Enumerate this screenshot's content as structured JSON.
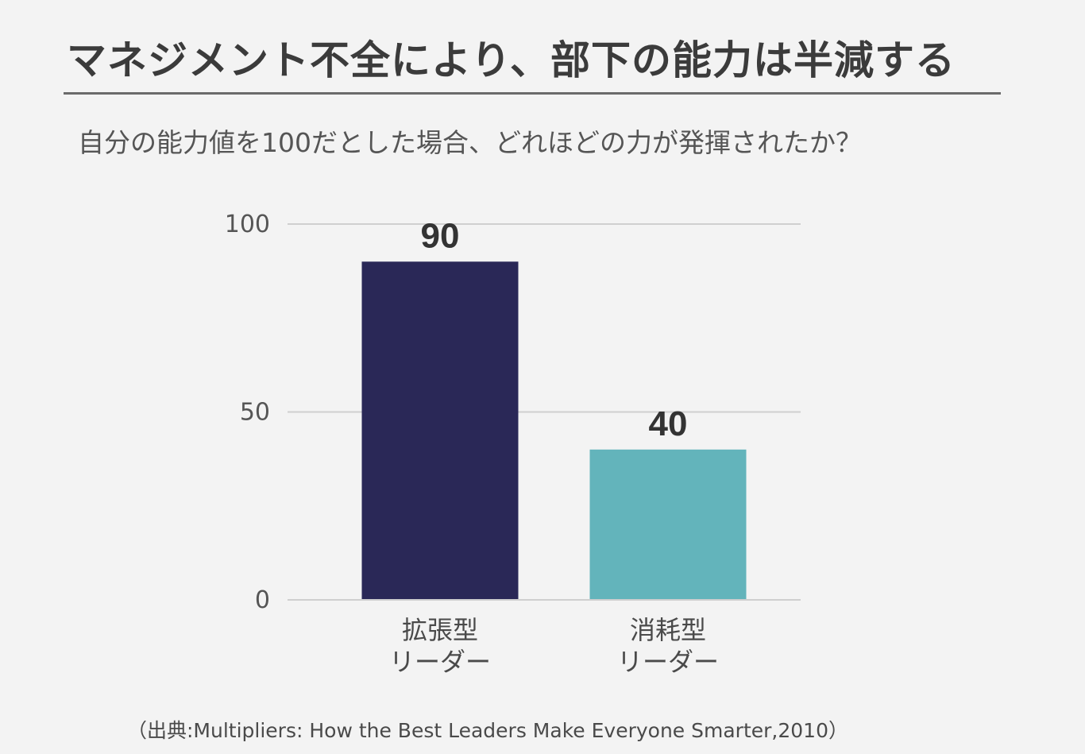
{
  "header": {
    "title": "マネジメント不全により、部下の能力は半減する",
    "subtitle": "自分の能力値を100だとした場合、どれほどの力が発揮されたか？"
  },
  "chart_data": {
    "type": "bar",
    "title": "",
    "xlabel": "",
    "ylabel": "",
    "ylim": [
      0,
      100
    ],
    "yticks": [
      0,
      50,
      100
    ],
    "categories": [
      "拡張型\nリーダー",
      "消耗型\nリーダー"
    ],
    "values": [
      90,
      40
    ],
    "colors": [
      "#2a2857",
      "#63b4bb"
    ],
    "data_labels": [
      "90",
      "40"
    ],
    "grid": true
  },
  "footer": {
    "source": "（出典:Multipliers: How the Best Leaders Make Everyone Smarter,2010）"
  },
  "colors": {
    "background": "#f3f3f3",
    "gridline": "#cfcfcf",
    "text": "#333333"
  }
}
